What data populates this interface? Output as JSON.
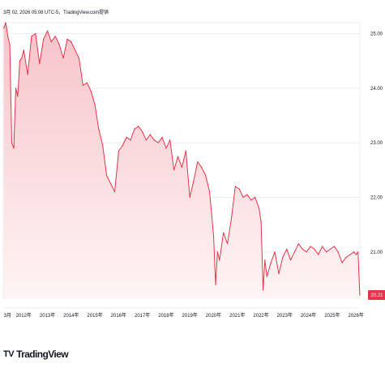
{
  "header": {
    "caption": "3月 02, 2026 05:08 UTC-5，TradingView.com提供"
  },
  "brand": {
    "mark": "TV",
    "name": "TradingView"
  },
  "colors": {
    "line": "#e5344b",
    "area_top": "#f7c3c9",
    "area_bottom": "#fef4f5",
    "price_badge": "#e5344b",
    "grid": "#eceef2",
    "axis_text": "#131722"
  },
  "chart_data": {
    "type": "area",
    "title": "",
    "xlabel": "",
    "ylabel": "",
    "ylim": [
      20.15,
      25.2
    ],
    "y_ticks": [
      "25.00",
      "24.00",
      "23.00",
      "22.00",
      "21.00"
    ],
    "x_ticks": [
      "3月",
      "2012年",
      "2013年",
      "2014年",
      "2015年",
      "2016年",
      "2017年",
      "2018年",
      "2019年",
      "2020年",
      "2021年",
      "2022年",
      "2023年",
      "2024年",
      "2025年",
      "2026年"
    ],
    "last_value": "20.21",
    "grid": true,
    "x": [
      "2011-03",
      "2011-04",
      "2011-05",
      "2011-06",
      "2011-07",
      "2011-08",
      "2011-09",
      "2011-10",
      "2011-11",
      "2011-12",
      "2012-01",
      "2012-03",
      "2012-05",
      "2012-07",
      "2012-09",
      "2012-11",
      "2013-01",
      "2013-03",
      "2013-05",
      "2013-07",
      "2013-09",
      "2013-11",
      "2014-01",
      "2014-03",
      "2014-05",
      "2014-07",
      "2014-09",
      "2014-11",
      "2015-01",
      "2015-03",
      "2015-05",
      "2015-07",
      "2015-09",
      "2015-11",
      "2016-01",
      "2016-03",
      "2016-05",
      "2016-07",
      "2016-09",
      "2016-11",
      "2017-01",
      "2017-03",
      "2017-05",
      "2017-07",
      "2017-09",
      "2017-11",
      "2018-01",
      "2018-03",
      "2018-05",
      "2018-07",
      "2018-09",
      "2018-11",
      "2019-01",
      "2019-03",
      "2019-05",
      "2019-07",
      "2019-09",
      "2019-11",
      "2020-01",
      "2020-02",
      "2020-03",
      "2020-04",
      "2020-06",
      "2020-08",
      "2020-10",
      "2020-12",
      "2021-02",
      "2021-04",
      "2021-06",
      "2021-08",
      "2021-10",
      "2021-12",
      "2022-01",
      "2022-02",
      "2022-03",
      "2022-04",
      "2022-06",
      "2022-08",
      "2022-10",
      "2022-12",
      "2023-02",
      "2023-04",
      "2023-06",
      "2023-08",
      "2023-10",
      "2023-12",
      "2024-02",
      "2024-04",
      "2024-06",
      "2024-08",
      "2024-10",
      "2024-12",
      "2025-02",
      "2025-04",
      "2025-06",
      "2025-08",
      "2025-10",
      "2025-12",
      "2026-01",
      "2026-02",
      "2026-03"
    ],
    "series": [
      {
        "values": [
          25.1,
          25.2,
          24.95,
          24.8,
          23.0,
          22.9,
          24.0,
          23.85,
          24.5,
          24.55,
          24.7,
          24.25,
          24.95,
          25.0,
          24.45,
          24.9,
          25.05,
          24.85,
          24.95,
          24.8,
          24.55,
          24.9,
          24.85,
          24.7,
          24.55,
          24.05,
          24.1,
          23.95,
          23.7,
          23.25,
          22.95,
          22.4,
          22.25,
          22.1,
          22.85,
          22.95,
          23.1,
          23.05,
          23.25,
          23.3,
          23.2,
          23.05,
          23.15,
          23.05,
          23.0,
          23.1,
          22.9,
          23.05,
          22.5,
          22.75,
          22.55,
          22.85,
          22.0,
          22.3,
          22.65,
          22.55,
          22.4,
          22.1,
          21.3,
          20.4,
          21.0,
          20.85,
          21.35,
          21.15,
          21.6,
          22.2,
          22.15,
          22.0,
          22.05,
          21.95,
          22.0,
          21.8,
          21.55,
          20.3,
          20.85,
          20.55,
          20.8,
          21.0,
          20.6,
          20.9,
          21.05,
          20.85,
          21.0,
          21.15,
          21.05,
          21.0,
          21.1,
          21.05,
          20.95,
          21.1,
          21.0,
          21.05,
          21.1,
          21.0,
          20.8,
          20.9,
          20.95,
          21.0,
          20.95,
          21.0,
          20.21
        ]
      }
    ]
  }
}
